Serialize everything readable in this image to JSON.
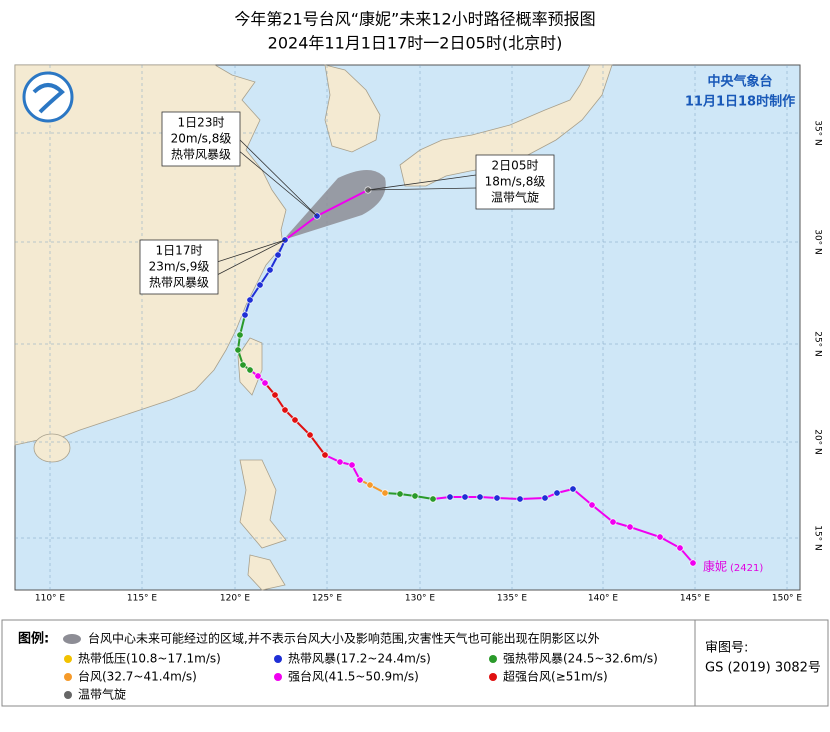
{
  "title": {
    "line1": "今年第21号台风“康妮”未来12小时路径概率预报图",
    "line2": "2024年11月1日17时一2日05时(北京时)"
  },
  "agency": {
    "name": "中央气象台",
    "issued": "11月1日18时制作"
  },
  "annotations": [
    {
      "lines": [
        "1日23时",
        "20m/s,8级",
        "热带风暴级"
      ]
    },
    {
      "lines": [
        "2日05时",
        "18m/s,8级",
        "温带气旋"
      ]
    },
    {
      "lines": [
        "1日17时",
        "23m/s,9级",
        "热带风暴级"
      ]
    }
  ],
  "storm_label": {
    "name": "康妮",
    "number": "(2421)"
  },
  "longitude_labels": [
    "110° E",
    "115° E",
    "120° E",
    "125° E",
    "130° E",
    "135° E",
    "140° E",
    "145° E",
    "150° E"
  ],
  "latitude_labels": [
    "15° N",
    "20° N",
    "25° N",
    "30° N",
    "35° N"
  ],
  "legend": {
    "title": "图例:",
    "cone": "台风中心未来可能经过的区域,并不表示台风大小及影响范围,灾害性天气也可能出现在阴影区以外",
    "items": [
      {
        "label": "热带低压(10.8~17.1m/s)",
        "color": "#f2c200"
      },
      {
        "label": "热带风暴(17.2~24.4m/s)",
        "color": "#1f2fd6"
      },
      {
        "label": "强热带风暴(24.5~32.6m/s)",
        "color": "#2a9a2a"
      },
      {
        "label": "台风(32.7~41.4m/s)",
        "color": "#f59a2a"
      },
      {
        "label": "强台风(41.5~50.9m/s)",
        "color": "#f000f0"
      },
      {
        "label": "超强台风(≥51m/s)",
        "color": "#e01010"
      },
      {
        "label": "温带气旋",
        "color": "#666666"
      }
    ]
  },
  "review": {
    "label": "审图号:",
    "code": "GS (2019) 3082号"
  }
}
